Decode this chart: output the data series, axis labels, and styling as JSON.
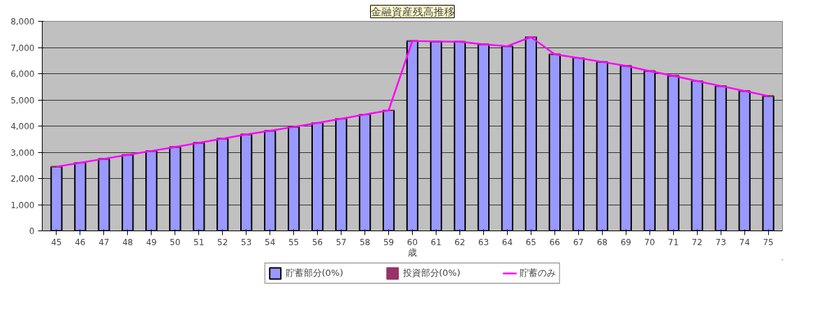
{
  "chart_data": {
    "type": "bar",
    "title": "金融資産残高推移",
    "xlabel": "歳",
    "categories": [
      "45",
      "46",
      "47",
      "48",
      "49",
      "50",
      "51",
      "52",
      "53",
      "54",
      "55",
      "56",
      "57",
      "58",
      "59",
      "60",
      "61",
      "62",
      "63",
      "64",
      "65",
      "66",
      "67",
      "68",
      "69",
      "70",
      "71",
      "72",
      "73",
      "74",
      "75"
    ],
    "stacked": true,
    "series": [
      {
        "name": "貯蓄部分(0%)",
        "color": "#9999ff",
        "values": [
          2450,
          2600,
          2750,
          2900,
          3050,
          3200,
          3360,
          3520,
          3680,
          3820,
          3970,
          4120,
          4280,
          4440,
          4600,
          7250,
          7230,
          7220,
          7120,
          7050,
          7400,
          6740,
          6600,
          6450,
          6300,
          6100,
          5920,
          5720,
          5530,
          5340,
          5150
        ]
      },
      {
        "name": "投資部分(0%)",
        "color": "#993366",
        "values": [
          0,
          0,
          0,
          0,
          0,
          0,
          0,
          0,
          0,
          0,
          0,
          0,
          0,
          0,
          0,
          0,
          0,
          0,
          0,
          0,
          0,
          0,
          0,
          0,
          0,
          0,
          0,
          0,
          0,
          0,
          0
        ]
      },
      {
        "name": "貯蓄のみ",
        "type": "line",
        "color": "#ff00ff",
        "values": [
          2450,
          2600,
          2750,
          2900,
          3050,
          3200,
          3360,
          3520,
          3680,
          3820,
          3970,
          4120,
          4280,
          4440,
          4600,
          7250,
          7230,
          7220,
          7120,
          7050,
          7400,
          6740,
          6600,
          6450,
          6300,
          6100,
          5920,
          5720,
          5530,
          5340,
          5150
        ]
      }
    ],
    "ylim": [
      0,
      8000
    ],
    "yticks": [
      {
        "value": 0,
        "label": "0"
      },
      {
        "value": 1000,
        "label": "1,000"
      },
      {
        "value": 2000,
        "label": "2,000"
      },
      {
        "value": 3000,
        "label": "3,000"
      },
      {
        "value": 4000,
        "label": "4,000"
      },
      {
        "value": 5000,
        "label": "5,000"
      },
      {
        "value": 6000,
        "label": "6,000"
      },
      {
        "value": 7000,
        "label": "7,000"
      },
      {
        "value": 8000,
        "label": "8,000"
      }
    ],
    "grid": "y",
    "legend": "bottom"
  }
}
